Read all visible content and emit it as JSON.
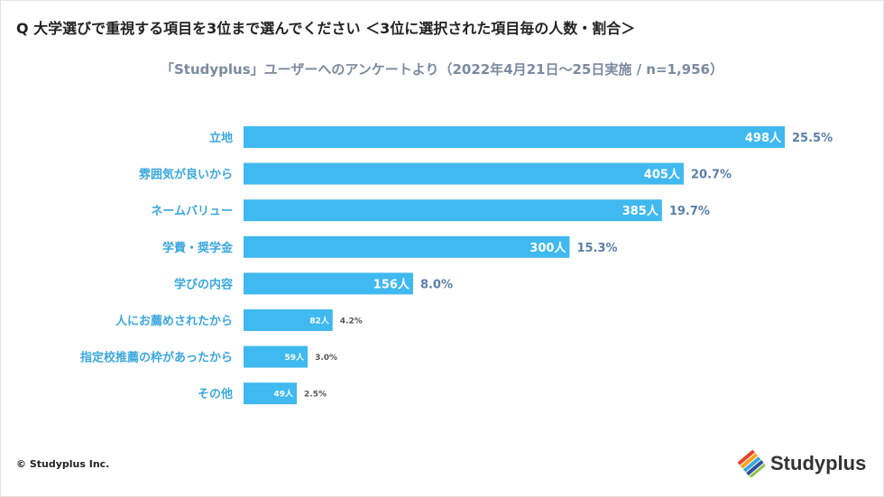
{
  "header": {
    "question": "Q 大学選びで重視する項目を3位まで選んでください ＜3位に選択された項目毎の人数・割合＞",
    "subtitle": "「Studyplus」ユーザーへのアンケートより（2022年4月21日〜25日実施 / n=1,956）"
  },
  "footer": {
    "copyright": "© Studyplus Inc.",
    "logo_text": "Studyplus",
    "logo_icon": "studyplus-stacked-stripes-logo"
  },
  "colors": {
    "bar": "#3fb9ef",
    "category_label": "#3aa7dd",
    "percent_label": "#5a7fa8",
    "percent_small": "#555555"
  },
  "chart_data": {
    "type": "bar",
    "orientation": "horizontal",
    "categories": [
      "立地",
      "雰囲気が良いから",
      "ネームバリュー",
      "学費・奨学金",
      "学びの内容",
      "人にお薦めされたから",
      "指定校推薦の枠があったから",
      "その他"
    ],
    "values": [
      498,
      405,
      385,
      300,
      156,
      82,
      59,
      49
    ],
    "value_labels": [
      "498人",
      "405人",
      "385人",
      "300人",
      "156人",
      "82人",
      "59人",
      "49人"
    ],
    "percent_labels": [
      "25.5%",
      "20.7%",
      "19.7%",
      "15.3%",
      "8.0%",
      "4.2%",
      "3.0%",
      "2.5%"
    ],
    "title": "",
    "xlabel": "",
    "ylabel": "",
    "xlim": [
      0,
      498
    ],
    "grid": false,
    "legend": "none"
  }
}
